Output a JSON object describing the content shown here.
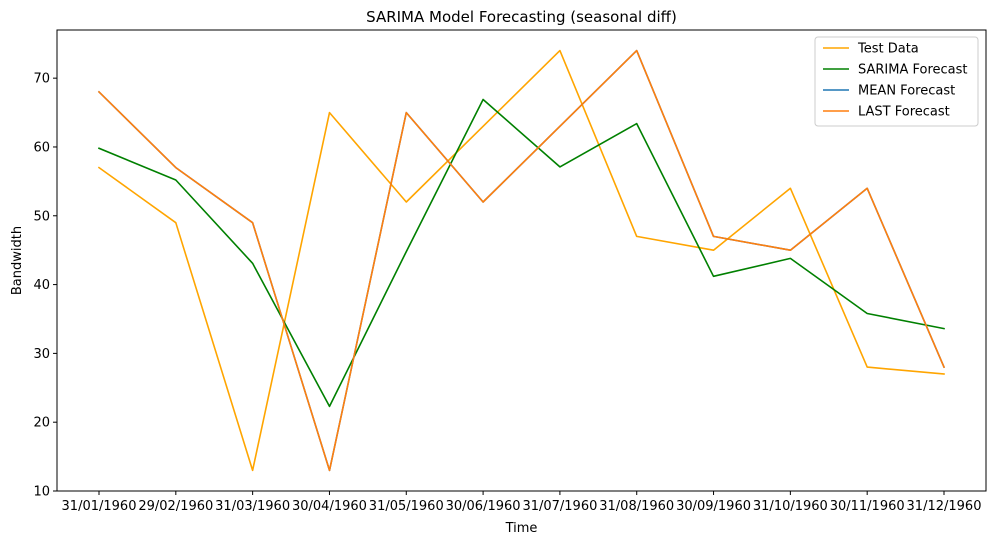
{
  "chart_data": {
    "type": "line",
    "title": "SARIMA Model Forecasting (seasonal diff)",
    "xlabel": "Time",
    "ylabel": "Bandwidth",
    "ylim": [
      10,
      77
    ],
    "yticks": [
      10,
      20,
      30,
      40,
      50,
      60,
      70
    ],
    "categories": [
      "31/01/1960",
      "29/02/1960",
      "31/03/1960",
      "30/04/1960",
      "31/05/1960",
      "30/06/1960",
      "31/07/1960",
      "31/08/1960",
      "30/09/1960",
      "31/10/1960",
      "30/11/1960",
      "31/12/1960"
    ],
    "grid": false,
    "legend_position": "top-right",
    "series": [
      {
        "name": "Test Data",
        "color": "#ffa500",
        "values": [
          57,
          49,
          13,
          65,
          52,
          63,
          74,
          47,
          45,
          54,
          28,
          27
        ]
      },
      {
        "name": "SARIMA Forecast",
        "color": "#008000",
        "values": [
          59.8,
          55.2,
          43.1,
          22.3,
          44.8,
          66.9,
          57.1,
          63.4,
          41.2,
          43.8,
          35.8,
          33.6
        ]
      },
      {
        "name": "MEAN Forecast",
        "color": "#1f77b4",
        "values": [
          68,
          57,
          49,
          13,
          65,
          52,
          63,
          74,
          47,
          45,
          54,
          28
        ]
      },
      {
        "name": "LAST Forecast",
        "color": "#ff7f0e",
        "values": [
          68,
          57,
          49,
          13,
          65,
          52,
          63,
          74,
          47,
          45,
          54,
          28
        ]
      }
    ]
  }
}
